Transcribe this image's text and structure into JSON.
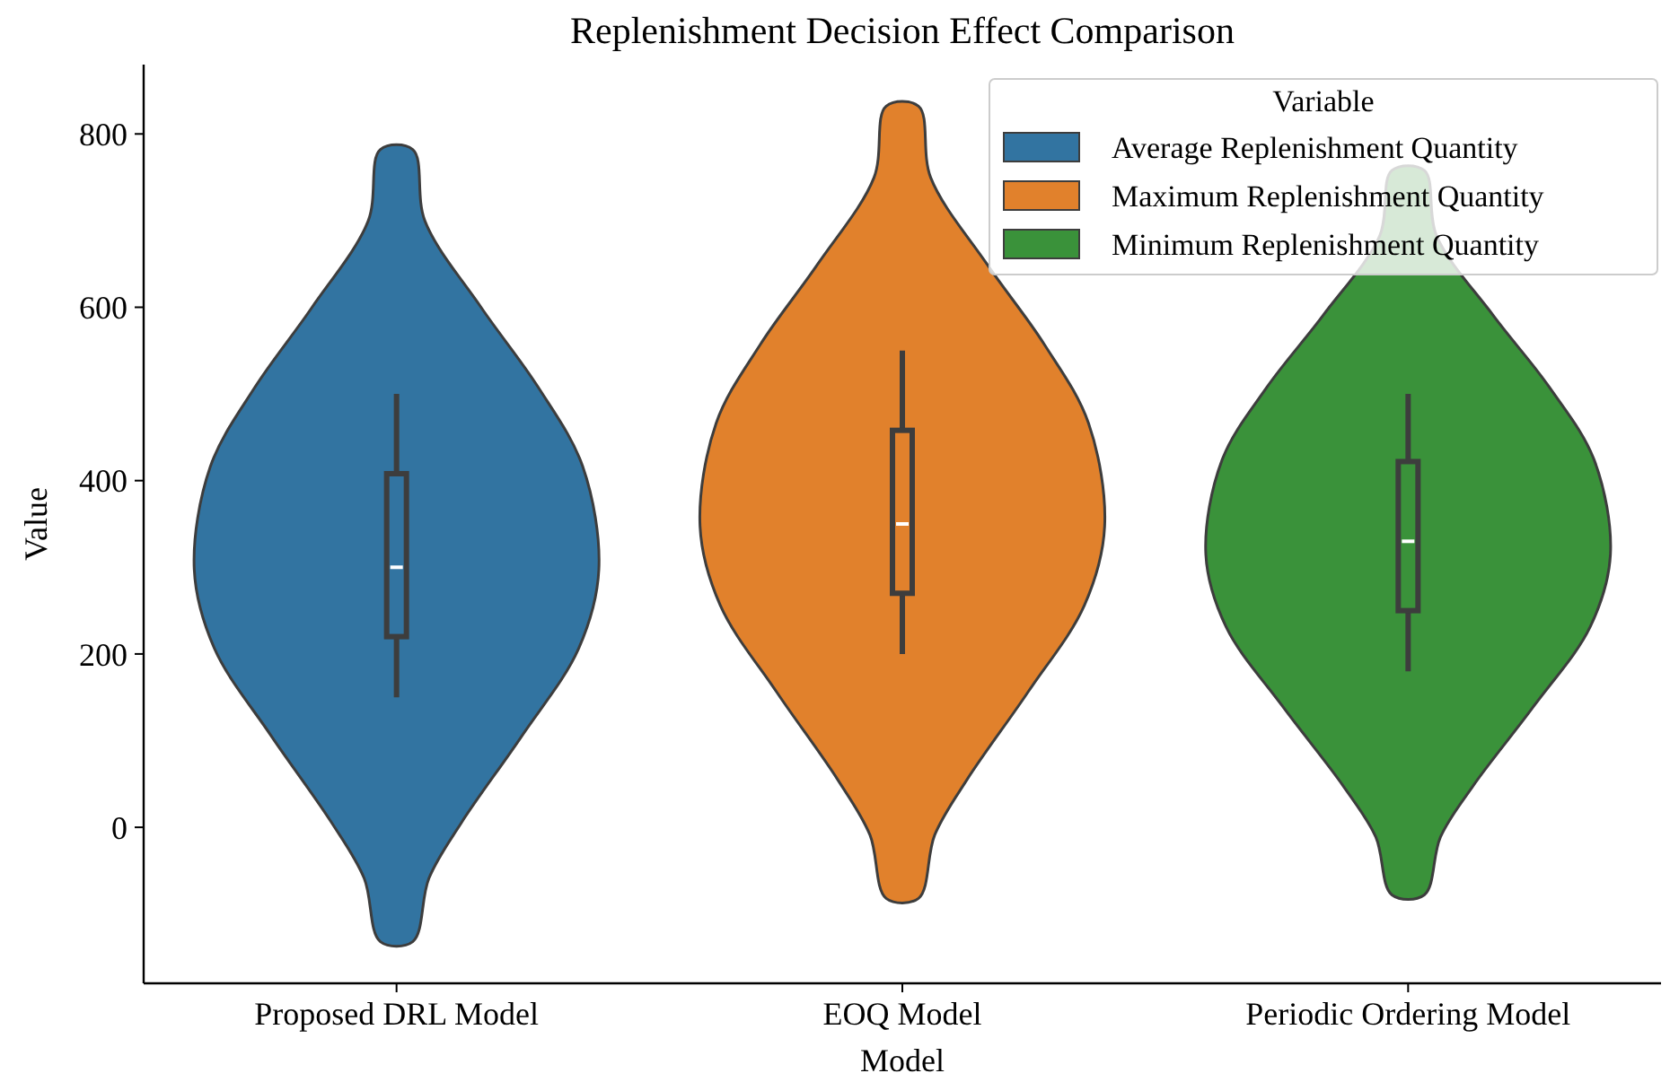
{
  "chart_data": {
    "type": "box",
    "title": "Replenishment Decision Effect Comparison",
    "xlabel": "Model",
    "ylabel": "Value",
    "legend_title": "Variable",
    "legend": "top right",
    "categories": [
      "Proposed DRL Model",
      "EOQ Model",
      "Periodic Ordering Model"
    ],
    "ylim": [
      -180,
      880
    ],
    "yticks": [
      0,
      200,
      400,
      600,
      800
    ],
    "series": [
      {
        "name": "Average Replenishment Quantity",
        "color": "#3274a1",
        "boxes": [
          {
            "low": 150,
            "q1": 220,
            "median": 300,
            "q3": 408,
            "high": 500
          },
          null,
          null
        ]
      },
      {
        "name": "Maximum Replenishment Quantity",
        "color": "#e1812c",
        "boxes": [
          null,
          {
            "low": 200,
            "q1": 270,
            "median": 350,
            "q3": 458,
            "high": 550
          },
          null
        ]
      },
      {
        "name": "Minimum Replenishment Quantity",
        "color": "#3a923a",
        "boxes": [
          null,
          null,
          {
            "low": 180,
            "q1": 250,
            "median": 330,
            "q3": 422,
            "high": 500
          }
        ]
      }
    ]
  }
}
